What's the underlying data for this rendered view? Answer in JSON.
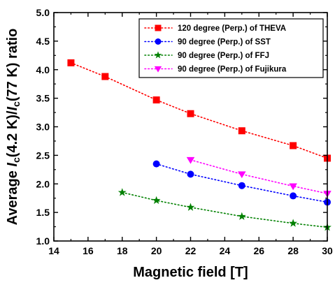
{
  "chart_data": {
    "type": "line",
    "xlabel": "Magnetic field [T]",
    "ylabel_parts": [
      "Average ",
      "I",
      "c",
      "(4.2 K)/",
      "I",
      "c",
      "(77 K) ratio"
    ],
    "xlim": [
      14,
      30
    ],
    "ylim": [
      1.0,
      5.0
    ],
    "xticks": [
      14,
      16,
      18,
      20,
      22,
      24,
      26,
      28,
      30
    ],
    "yticks": [
      1.0,
      1.5,
      2.0,
      2.5,
      3.0,
      3.5,
      4.0,
      4.5,
      5.0
    ],
    "ytick_labels": [
      "1.0",
      "1.5",
      "2.0",
      "2.5",
      "3.0",
      "3.5",
      "4.0",
      "4.5",
      "5.0"
    ],
    "legend_position": "top-right",
    "line_style": "dotted",
    "series": [
      {
        "name": "120 degree (Perp.) of THEVA",
        "marker": "square",
        "color": "#ff0000",
        "x": [
          15,
          17,
          20,
          22,
          25,
          28,
          30
        ],
        "y": [
          4.12,
          3.88,
          3.47,
          3.23,
          2.93,
          2.67,
          2.45
        ]
      },
      {
        "name": "90 degree (Perp.) of SST",
        "marker": "circle",
        "color": "#0000ff",
        "x": [
          20,
          22,
          25,
          28,
          30
        ],
        "y": [
          2.35,
          2.17,
          1.97,
          1.79,
          1.68
        ]
      },
      {
        "name": "90 degree (Perp.) of FFJ",
        "marker": "star",
        "color": "#008000",
        "x": [
          18,
          20,
          22,
          25,
          28,
          30
        ],
        "y": [
          1.85,
          1.71,
          1.59,
          1.43,
          1.31,
          1.24
        ]
      },
      {
        "name": "90 degree (Perp.) of Fujikura",
        "marker": "triangle-down",
        "color": "#ff00ff",
        "x": [
          22,
          25,
          28,
          30
        ],
        "y": [
          2.42,
          2.17,
          1.96,
          1.83
        ]
      }
    ]
  }
}
